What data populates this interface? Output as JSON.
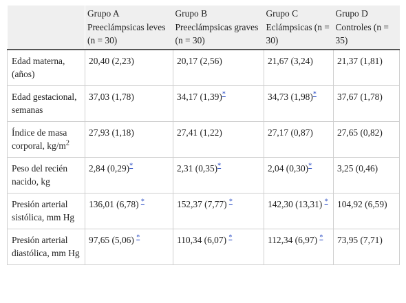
{
  "headers": [
    "",
    "Grupo A Preeclámpsicas leves (n = 30)",
    "Grupo B Preeclámpsicas graves (n = 30)",
    "Grupo C Eclámpsicas (n = 30)",
    "Grupo D Controles (n = 35)"
  ],
  "rows": [
    {
      "label": "Edad materna, (años)",
      "values": [
        "20,40 (2,23)",
        "20,17 (2,56)",
        "21,67 (3,24)",
        "21,37 (1,81)"
      ]
    },
    {
      "label": "Edad gestacional, semanas",
      "values": [
        "37,03 (1,78)",
        "34,17 (1,39)",
        "34,73 (1,98)",
        "37,67 (1,78)"
      ]
    },
    {
      "label": "Índice de masa corporal, kg/m",
      "label_sup": "2",
      "values": [
        "27,93 (1,18)",
        "27,41 (1,22)",
        "27,17 (0,87)",
        "27,65 (0,82)"
      ]
    },
    {
      "label": "Peso del recién nacido, kg",
      "values": [
        "2,84 (0,29)",
        "2,31 (0,35)",
        "2,04 (0,30)",
        "3,25 (0,46)"
      ]
    },
    {
      "label": "Presión arterial sistólica, mm Hg",
      "values": [
        "136,01 (6,78) ",
        "152,37 (7,77) ",
        "142,30 (13,31) ",
        "104,92 (6,59)"
      ]
    },
    {
      "label": "Presión arterial diastólica, mm Hg",
      "values": [
        "97,65 (5,06) ",
        "110,34 (6,07) ",
        "112,34 (6,97) ",
        "73,95 (7,71)"
      ]
    }
  ],
  "footnote_marker": "*"
}
